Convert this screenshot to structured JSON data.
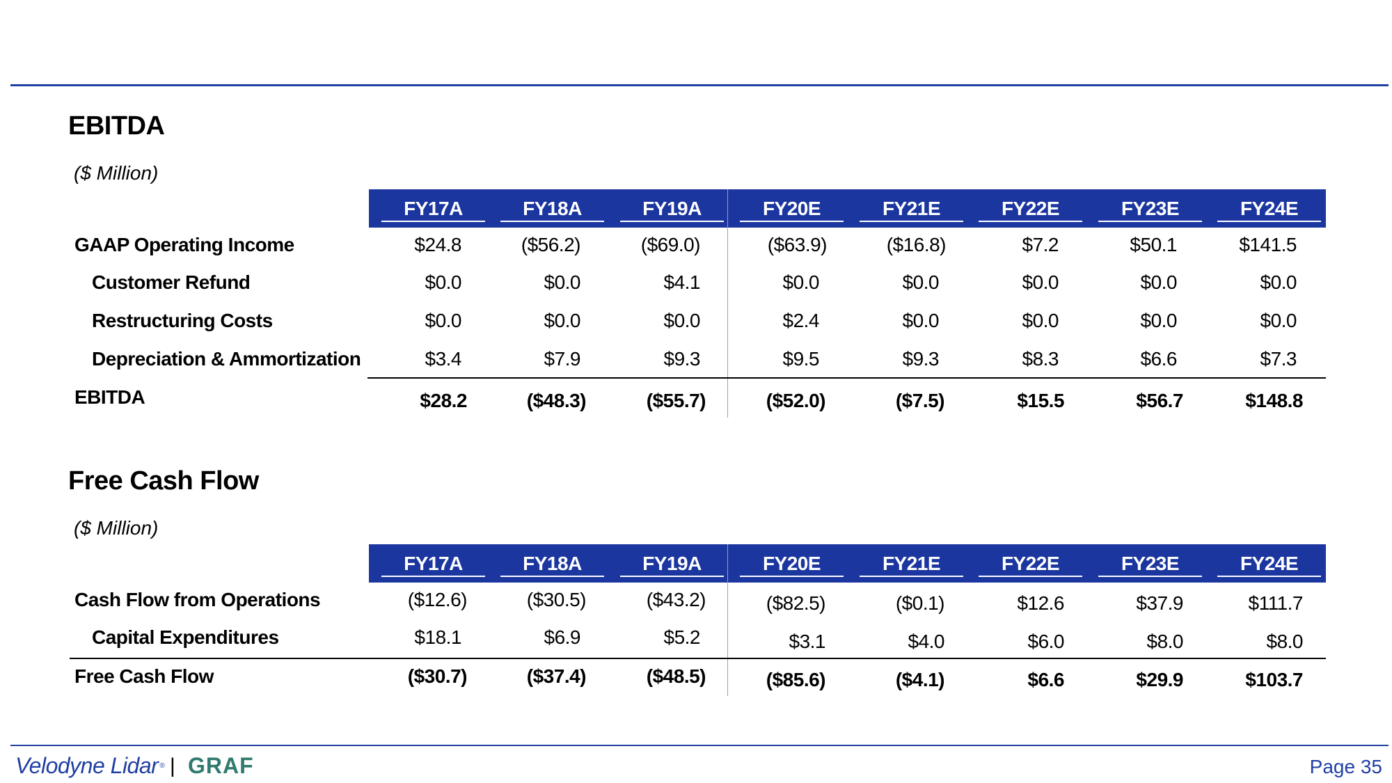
{
  "colors": {
    "accent": "#1c36a0",
    "graf": "#2f7a6e"
  },
  "ebitda": {
    "title": "EBITDA",
    "unit": "($ Million)",
    "headers": [
      "FY17A",
      "FY18A",
      "FY19A",
      "FY20E",
      "FY21E",
      "FY22E",
      "FY23E",
      "FY24E"
    ],
    "rows": [
      {
        "label": "GAAP Operating Income",
        "values": [
          "$24.8",
          "($56.2)",
          "($69.0)",
          "($63.9)",
          "($16.8)",
          "$7.2",
          "$50.1",
          "$141.5"
        ]
      },
      {
        "label": "Customer Refund",
        "values": [
          "$0.0",
          "$0.0",
          "$4.1",
          "$0.0",
          "$0.0",
          "$0.0",
          "$0.0",
          "$0.0"
        ]
      },
      {
        "label": "Restructuring Costs",
        "values": [
          "$0.0",
          "$0.0",
          "$0.0",
          "$2.4",
          "$0.0",
          "$0.0",
          "$0.0",
          "$0.0"
        ]
      },
      {
        "label": "Depreciation & Ammortization",
        "values": [
          "$3.4",
          "$7.9",
          "$9.3",
          "$9.5",
          "$9.3",
          "$8.3",
          "$6.6",
          "$7.3"
        ]
      }
    ],
    "total": {
      "label": "EBITDA",
      "values": [
        "$28.2",
        "($48.3)",
        "($55.7)",
        "($52.0)",
        "($7.5)",
        "$15.5",
        "$56.7",
        "$148.8"
      ]
    }
  },
  "fcf": {
    "title": "Free Cash Flow",
    "unit": "($ Million)",
    "headers": [
      "FY17A",
      "FY18A",
      "FY19A",
      "FY20E",
      "FY21E",
      "FY22E",
      "FY23E",
      "FY24E"
    ],
    "rows": [
      {
        "label": "Cash Flow from Operations",
        "values": [
          "($12.6)",
          "($30.5)",
          "($43.2)",
          "($82.5)",
          "($0.1)",
          "$12.6",
          "$37.9",
          "$111.7"
        ]
      },
      {
        "label": "Capital Expenditures",
        "values": [
          "$18.1",
          "$6.9",
          "$5.2",
          "$3.1",
          "$4.0",
          "$6.0",
          "$8.0",
          "$8.0"
        ]
      }
    ],
    "total": {
      "label": "Free Cash Flow",
      "values": [
        "($30.7)",
        "($37.4)",
        "($48.5)",
        "($85.6)",
        "($4.1)",
        "$6.6",
        "$29.9",
        "$103.7"
      ]
    }
  },
  "footer": {
    "logo_text": "Velodyne Lidar",
    "logo_mark": "®",
    "separator": "|",
    "graf": "GRAF",
    "page": "Page 35"
  }
}
